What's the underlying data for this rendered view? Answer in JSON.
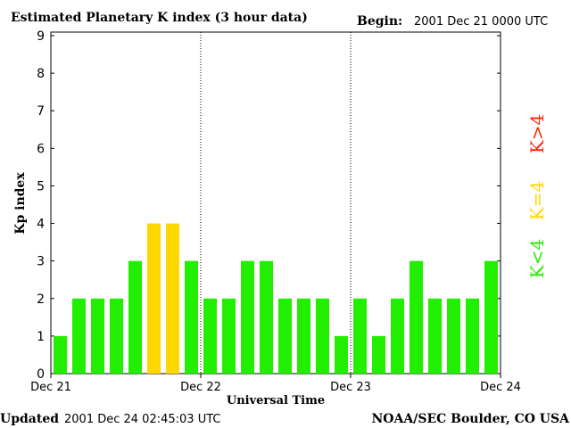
{
  "chart_data": {
    "type": "bar",
    "title": "Estimated Planetary K index (3 hour data)",
    "begin_label": "Begin:",
    "begin_value": "2001 Dec 21 0000 UTC",
    "xlabel": "Universal Time",
    "ylabel": "Kp index",
    "ylim": [
      0,
      9
    ],
    "y_ticks": [
      "0",
      "1",
      "2",
      "3",
      "4",
      "5",
      "6",
      "7",
      "8",
      "9"
    ],
    "x_tick_labels": [
      "Dec 21",
      "Dec 22",
      "Dec 23",
      "Dec 24"
    ],
    "values": [
      1,
      2,
      2,
      2,
      3,
      4,
      4,
      3,
      2,
      2,
      3,
      3,
      2,
      2,
      2,
      1,
      2,
      1,
      2,
      3,
      2,
      2,
      2,
      3
    ],
    "legend": [
      {
        "label": "K<4",
        "color": "#22ee00"
      },
      {
        "label": "K=4",
        "color": "#ffd700"
      },
      {
        "label": "K>4",
        "color": "#ff2200"
      }
    ],
    "grid": "vertical dotted day separators",
    "updated_label": "Updated",
    "updated_value": "2001 Dec 24 02:45:03 UTC",
    "credit": "NOAA/SEC Boulder, CO USA",
    "colors": {
      "low": "#22ee00",
      "equal": "#ffd700",
      "high": "#ff2200"
    }
  }
}
